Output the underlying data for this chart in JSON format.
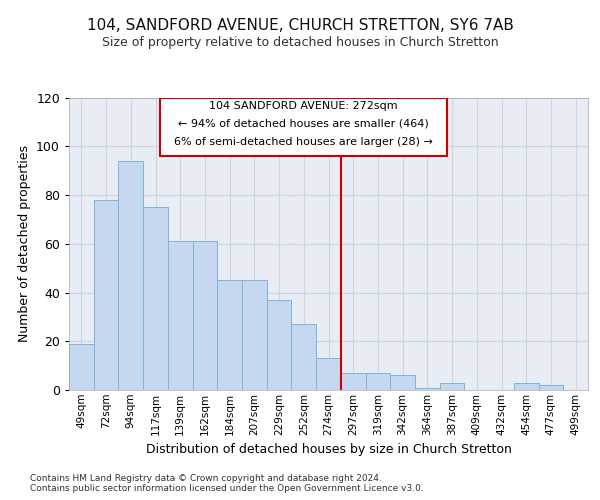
{
  "title": "104, SANDFORD AVENUE, CHURCH STRETTON, SY6 7AB",
  "subtitle": "Size of property relative to detached houses in Church Stretton",
  "xlabel": "Distribution of detached houses by size in Church Stretton",
  "ylabel": "Number of detached properties",
  "categories": [
    "49sqm",
    "72sqm",
    "94sqm",
    "117sqm",
    "139sqm",
    "162sqm",
    "184sqm",
    "207sqm",
    "229sqm",
    "252sqm",
    "274sqm",
    "297sqm",
    "319sqm",
    "342sqm",
    "364sqm",
    "387sqm",
    "409sqm",
    "432sqm",
    "454sqm",
    "477sqm",
    "499sqm"
  ],
  "values": [
    19,
    78,
    94,
    75,
    61,
    61,
    45,
    45,
    37,
    27,
    13,
    7,
    7,
    6,
    1,
    3,
    0,
    0,
    3,
    2,
    0
  ],
  "bar_color": "#c5d8f0",
  "bar_edge_color": "#7fb3d9",
  "ref_line_label": "104 SANDFORD AVENUE: 272sqm",
  "ref_line_pct_smaller": "94% of detached houses are smaller (464)",
  "ref_line_pct_larger": "6% of semi-detached houses are larger (28)",
  "ref_line_color": "#cc0000",
  "annotation_box_edge_color": "#cc0000",
  "ylim": [
    0,
    120
  ],
  "yticks": [
    0,
    20,
    40,
    60,
    80,
    100,
    120
  ],
  "grid_color": "#cdd5e0",
  "bg_color": "#e8edf5",
  "footer1": "Contains HM Land Registry data © Crown copyright and database right 2024.",
  "footer2": "Contains public sector information licensed under the Open Government Licence v3.0."
}
